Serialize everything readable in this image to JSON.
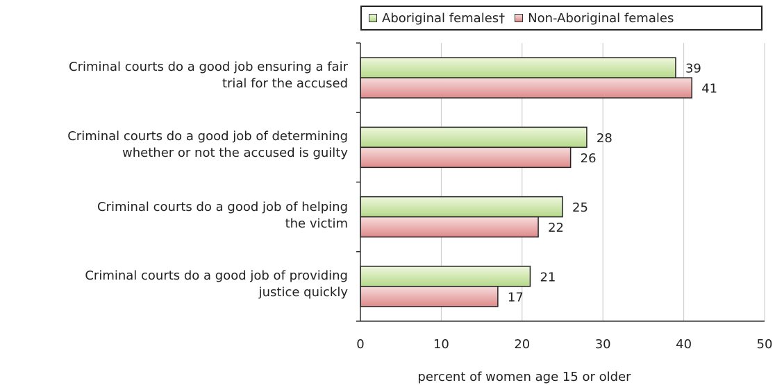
{
  "chart_data": {
    "type": "bar",
    "orientation": "horizontal",
    "title": "",
    "xlabel": "percent of women age 15 or older",
    "ylabel": "",
    "xlim": [
      0,
      50
    ],
    "xticks": [
      0,
      10,
      20,
      30,
      40,
      50
    ],
    "grid": "vertical",
    "legend_position": "top-right",
    "categories": [
      "Criminal courts do a good job ensuring a fair\ntrial for the accused",
      "Criminal courts do a good job of determining\nwhether or not the accused is guilty",
      "Criminal courts do a good job of helping\nthe victim",
      "Criminal courts do a good job of providing\njustice quickly"
    ],
    "series": [
      {
        "name": "Aboriginal females†",
        "values": [
          39,
          28,
          25,
          21
        ],
        "color": "#b6d98a"
      },
      {
        "name": "Non-Aboriginal females",
        "values": [
          41,
          26,
          22,
          17
        ],
        "color": "#de8a8a"
      }
    ]
  }
}
